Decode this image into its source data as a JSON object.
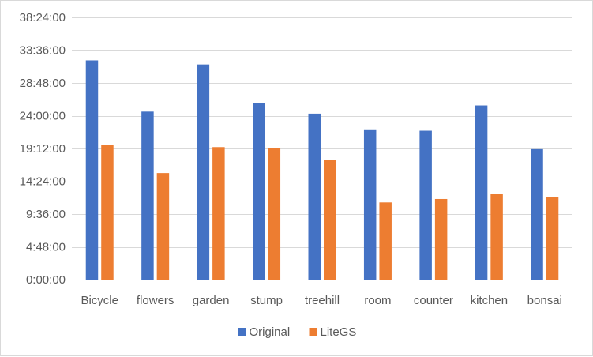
{
  "chart_data": {
    "type": "bar",
    "title": "",
    "xlabel": "",
    "ylabel": "",
    "categories": [
      "Bicycle",
      "flowers",
      "garden",
      "stump",
      "treehill",
      "room",
      "counter",
      "kitchen",
      "bonsai"
    ],
    "y_unit": "hours",
    "ylim": [
      0,
      38.4
    ],
    "y_ticks": [
      0,
      4.8,
      9.6,
      14.4,
      19.2,
      24,
      28.8,
      33.6,
      38.4
    ],
    "y_tick_labels": [
      "0:00:00",
      "4:48:00",
      "9:36:00",
      "14:24:00",
      "19:12:00",
      "24:00:00",
      "28:48:00",
      "33:36:00",
      "38:24:00"
    ],
    "grid": true,
    "legend_position": "bottom",
    "series": [
      {
        "name": "Original",
        "color": "#4472c4",
        "values": [
          32.1,
          24.6,
          31.5,
          25.8,
          24.3,
          22.0,
          21.8,
          25.5,
          19.1
        ]
      },
      {
        "name": "LiteGS",
        "color": "#ed7d31",
        "values": [
          19.7,
          15.6,
          19.4,
          19.2,
          17.5,
          11.3,
          11.8,
          12.6,
          12.1
        ]
      }
    ]
  }
}
